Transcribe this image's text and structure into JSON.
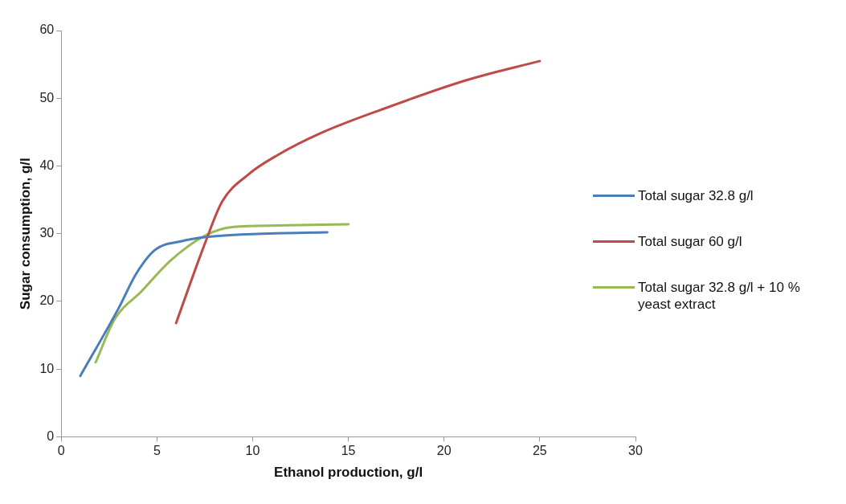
{
  "chart_data": {
    "type": "line",
    "xlabel": "Ethanol production, g/l",
    "ylabel": "Sugar consumption, g/l",
    "xlim": [
      0,
      30
    ],
    "xticks": [
      0,
      5,
      10,
      15,
      20,
      25,
      30
    ],
    "ylim": [
      0,
      60
    ],
    "yticks": [
      0,
      10,
      20,
      30,
      40,
      50,
      60
    ],
    "grid": false,
    "legend": "right",
    "marker": "none",
    "series": [
      {
        "name": "Total sugar 32.8 g/l",
        "color": "#4a7ebb",
        "x": [
          1,
          3,
          3.9,
          4.9,
          6.3,
          7.5,
          10.5,
          13.9
        ],
        "values": [
          9,
          19,
          24,
          27.6,
          28.9,
          29.5,
          30,
          30.2
        ]
      },
      {
        "name": "Total sugar 60 g/l",
        "color": "#be4b48",
        "x": [
          6,
          7.5,
          8.4,
          9.8,
          11.3,
          13.6,
          16.7,
          21.2,
          25
        ],
        "values": [
          16.8,
          28.5,
          34.7,
          38.8,
          41.6,
          44.9,
          48.3,
          52.7,
          55.5
        ]
      },
      {
        "name": "Total sugar 32.8 g/l + 10 % yeast extract",
        "color": "#98b954",
        "x": [
          1.8,
          2.8,
          4.2,
          5.7,
          7.5,
          9,
          11.3,
          15
        ],
        "values": [
          11,
          17.4,
          21.5,
          26,
          29.7,
          31,
          31.2,
          31.4
        ]
      }
    ]
  }
}
